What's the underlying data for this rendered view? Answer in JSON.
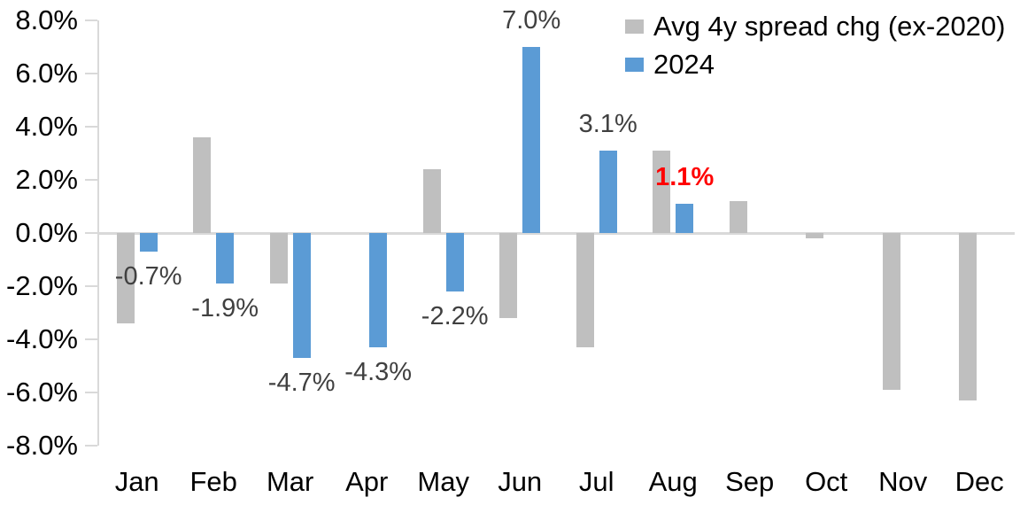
{
  "chart_data": {
    "type": "bar",
    "title": "",
    "xlabel": "",
    "ylabel": "",
    "categories": [
      "Jan",
      "Feb",
      "Mar",
      "Apr",
      "May",
      "Jun",
      "Jul",
      "Aug",
      "Sep",
      "Oct",
      "Nov",
      "Dec"
    ],
    "series": [
      {
        "name": "Avg 4y spread chg (ex-2020)",
        "color": "#BFBFBF",
        "values": [
          -3.4,
          3.6,
          -1.9,
          0,
          2.4,
          -3.2,
          -4.3,
          3.1,
          1.2,
          -0.2,
          -5.9,
          -6.3
        ]
      },
      {
        "name": "2024",
        "color": "#5B9BD5",
        "values": [
          -0.7,
          -1.9,
          -4.7,
          -4.3,
          -2.2,
          7.0,
          3.1,
          1.1,
          null,
          null,
          null,
          null
        ],
        "data_labels": [
          {
            "text": "-0.7%",
            "color": "#404040",
            "bold": false
          },
          {
            "text": "-1.9%",
            "color": "#404040",
            "bold": false
          },
          {
            "text": "-4.7%",
            "color": "#404040",
            "bold": false
          },
          {
            "text": "-4.3%",
            "color": "#404040",
            "bold": false
          },
          {
            "text": "-2.2%",
            "color": "#404040",
            "bold": false
          },
          {
            "text": "7.0%",
            "color": "#404040",
            "bold": false
          },
          {
            "text": "3.1%",
            "color": "#404040",
            "bold": false
          },
          {
            "text": "1.1%",
            "color": "#FF0000",
            "bold": true
          },
          null,
          null,
          null,
          null
        ]
      }
    ],
    "ylim": [
      -8,
      8
    ],
    "y_tick_labels": [
      "8.0%",
      "6.0%",
      "4.0%",
      "2.0%",
      "0.0%",
      "-2.0%",
      "-4.0%",
      "-6.0%",
      "-8.0%"
    ],
    "grid": "zero line only",
    "legend_position": "top-right",
    "axis_color": "#D9D9D9"
  }
}
